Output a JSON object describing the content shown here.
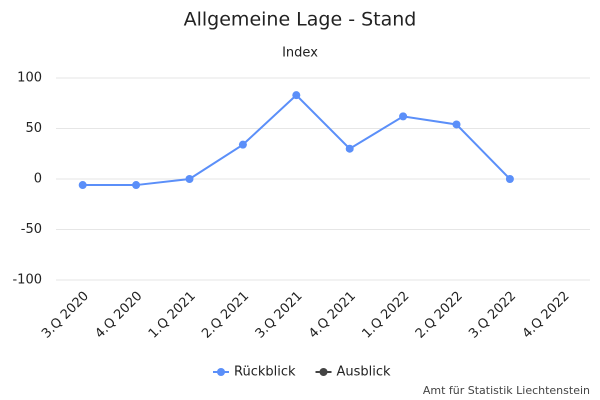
{
  "chart_data": {
    "type": "line",
    "title": "Allgemeine Lage - Stand",
    "subtitle": "Index",
    "categories": [
      "3.Q 2020",
      "4.Q 2020",
      "1.Q 2021",
      "2.Q 2021",
      "3.Q 2021",
      "4.Q 2021",
      "1.Q 2022",
      "2.Q 2022",
      "3.Q 2022",
      "4.Q 2022"
    ],
    "series": [
      {
        "name": "Rückblick",
        "color": "#5b8ff9",
        "values": [
          -6,
          -6,
          0,
          34,
          83,
          30,
          62,
          54,
          0,
          null
        ]
      },
      {
        "name": "Ausblick",
        "color": "#444444",
        "values": [
          null,
          null,
          null,
          null,
          null,
          null,
          null,
          null,
          null,
          null
        ]
      }
    ],
    "ylim": [
      -100,
      100
    ],
    "yticks": [
      -100,
      -50,
      0,
      50,
      100
    ],
    "grid": true,
    "legend": "bottom",
    "credit": "Amt für Statistik Liechtenstein"
  }
}
